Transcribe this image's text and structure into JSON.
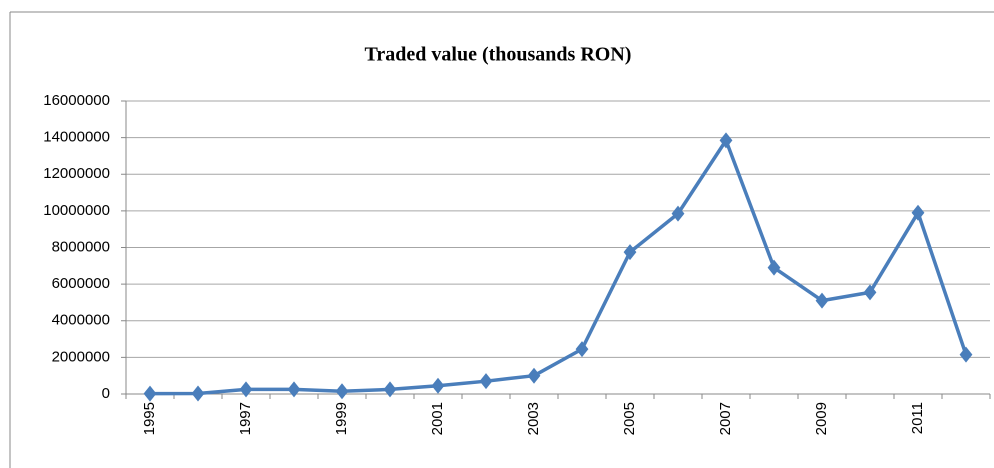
{
  "chart_data": {
    "type": "line",
    "title": "Traded value (thousands RON)",
    "categories": [
      "1995",
      null,
      "1997",
      null,
      "1999",
      null,
      "2001",
      null,
      "2003",
      null,
      "2005",
      null,
      "2007",
      null,
      "2009",
      null,
      "2011",
      null
    ],
    "series": [
      {
        "name": "Traded value",
        "color": "#4a7ebb",
        "values": [
          20000,
          30000,
          250000,
          250000,
          150000,
          250000,
          450000,
          700000,
          1000000,
          2450000,
          7750000,
          9850000,
          13850000,
          6900000,
          5100000,
          5550000,
          9900000,
          2150000
        ]
      }
    ],
    "ylim": [
      0,
      16000000
    ],
    "yticks": [
      0,
      2000000,
      4000000,
      6000000,
      8000000,
      10000000,
      12000000,
      14000000,
      16000000
    ],
    "grid": true
  }
}
